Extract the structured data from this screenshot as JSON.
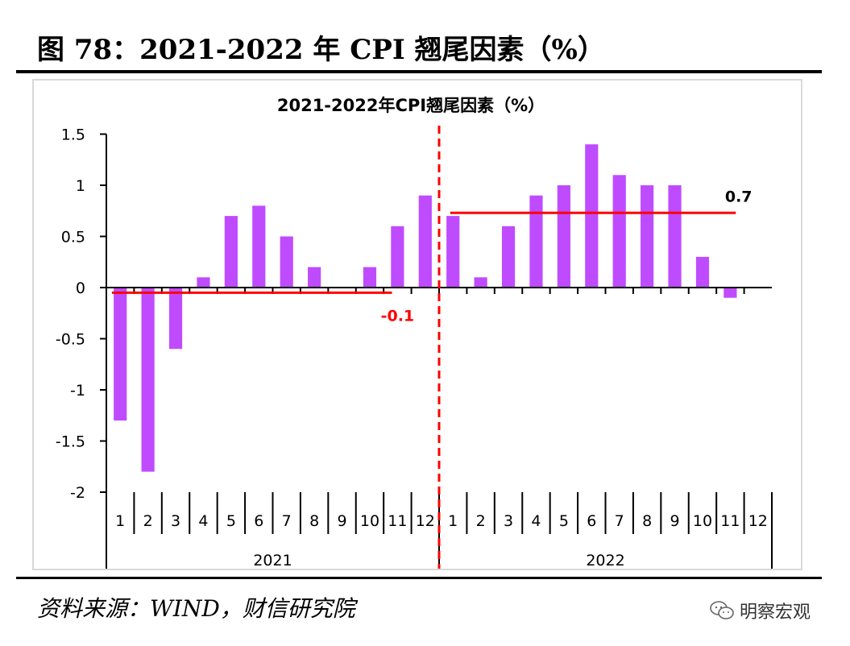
{
  "figure_title": "图 78：2021-2022 年 CPI 翘尾因素（%）",
  "source_text": "资料来源：WIND，财信研究院",
  "brand_text": "明察宏观",
  "colors": {
    "bar": "#bf4bff",
    "avg_line": "#ff0000",
    "divider": "#ff0000",
    "axis": "#000000"
  },
  "chart_data": {
    "type": "bar",
    "title": "2021-2022年CPI翘尾因素（%）",
    "xlabel": "",
    "ylabel": "",
    "ylim": [
      -2,
      1.5
    ],
    "yticks": [
      "1.5",
      "1",
      "0.5",
      "0",
      "-0.5",
      "-1",
      "-1.5",
      "-2"
    ],
    "groups": [
      {
        "year": "2021",
        "months": [
          "1",
          "2",
          "3",
          "4",
          "5",
          "6",
          "7",
          "8",
          "9",
          "10",
          "11",
          "12"
        ],
        "values": [
          -1.3,
          -1.8,
          -0.6,
          0.1,
          0.7,
          0.8,
          0.5,
          0.2,
          0,
          0.2,
          0.6,
          0.9
        ],
        "average": -0.05,
        "average_label": "-0.1"
      },
      {
        "year": "2022",
        "months": [
          "1",
          "2",
          "3",
          "4",
          "5",
          "6",
          "7",
          "8",
          "9",
          "10",
          "11",
          "12"
        ],
        "values": [
          0.7,
          0.1,
          0.6,
          0.9,
          1.0,
          1.4,
          1.1,
          1.0,
          1.0,
          0.3,
          -0.1,
          null
        ],
        "average": 0.73,
        "average_label": "0.7"
      }
    ],
    "grid": false,
    "legend": "none"
  }
}
